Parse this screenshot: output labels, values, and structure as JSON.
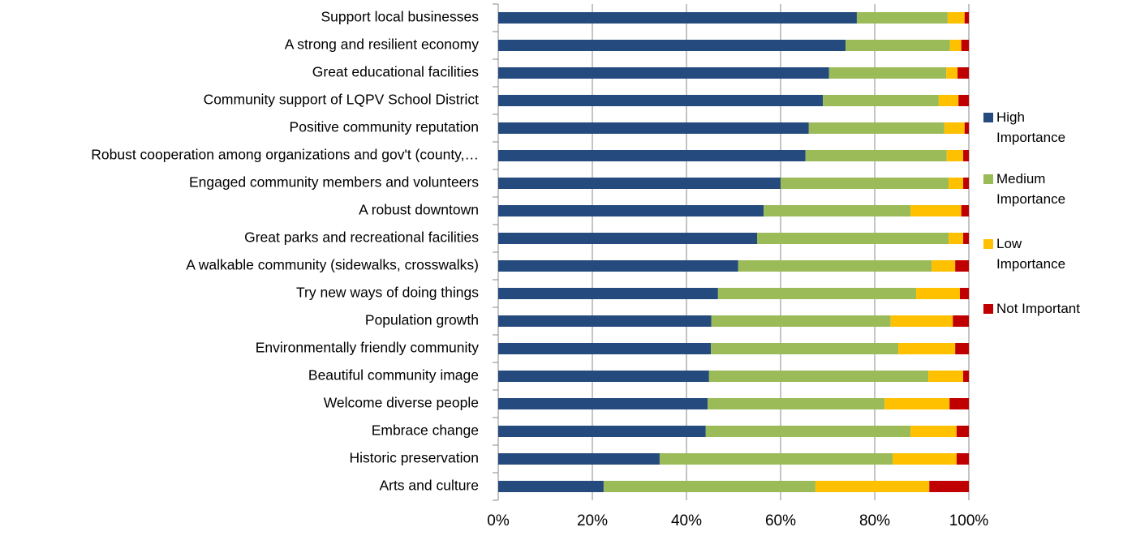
{
  "chart_data": {
    "type": "stacked-bar-horizontal",
    "categories": [
      "Support local businesses",
      "A strong and resilient economy",
      "Great educational facilities",
      "Community support of LQPV School District",
      "Positive community reputation",
      "Robust cooperation among organizations and gov't (county,…",
      "Engaged community members and volunteers",
      "A robust downtown",
      "Great parks and recreational facilities",
      "A walkable community (sidewalks, crosswalks)",
      "Try new ways of doing things",
      "Population growth",
      "Environmentally friendly community",
      "Beautiful community image",
      "Welcome diverse people",
      "Embrace change",
      "Historic preservation",
      "Arts and culture"
    ],
    "series": [
      {
        "name": "High Importance",
        "color": "#254b7e",
        "values": [
          76.2,
          73.8,
          70.3,
          69.0,
          66.0,
          65.3,
          60.0,
          56.4,
          55.0,
          51.0,
          46.7,
          45.3,
          45.2,
          44.8,
          44.5,
          44.1,
          34.3,
          22.4
        ]
      },
      {
        "name": "Medium Importance",
        "color": "#9bbb59",
        "values": [
          19.3,
          22.2,
          24.9,
          24.6,
          28.8,
          30.0,
          35.7,
          31.2,
          40.7,
          41.1,
          42.1,
          38.1,
          39.8,
          46.6,
          37.6,
          43.5,
          49.5,
          45.0
        ]
      },
      {
        "name": "Low Importance",
        "color": "#ffc000",
        "values": [
          3.6,
          2.4,
          2.4,
          4.2,
          4.3,
          3.5,
          3.1,
          10.8,
          3.1,
          5.0,
          9.3,
          13.2,
          12.1,
          7.4,
          13.8,
          9.8,
          13.6,
          24.2
        ]
      },
      {
        "name": "Not Important",
        "color": "#c00000",
        "values": [
          0.9,
          1.6,
          2.4,
          2.2,
          0.9,
          1.2,
          1.2,
          1.6,
          1.2,
          2.9,
          1.9,
          3.4,
          2.9,
          1.2,
          4.1,
          2.6,
          2.6,
          8.4
        ]
      }
    ],
    "xlim": [
      0,
      100
    ],
    "xticks": [
      {
        "value": 0,
        "label": "0%"
      },
      {
        "value": 20,
        "label": "20%"
      },
      {
        "value": 40,
        "label": "40%"
      },
      {
        "value": 60,
        "label": "60%"
      },
      {
        "value": 80,
        "label": "80%"
      },
      {
        "value": 100,
        "label": "100%"
      }
    ],
    "grid": true,
    "legend": "right"
  }
}
